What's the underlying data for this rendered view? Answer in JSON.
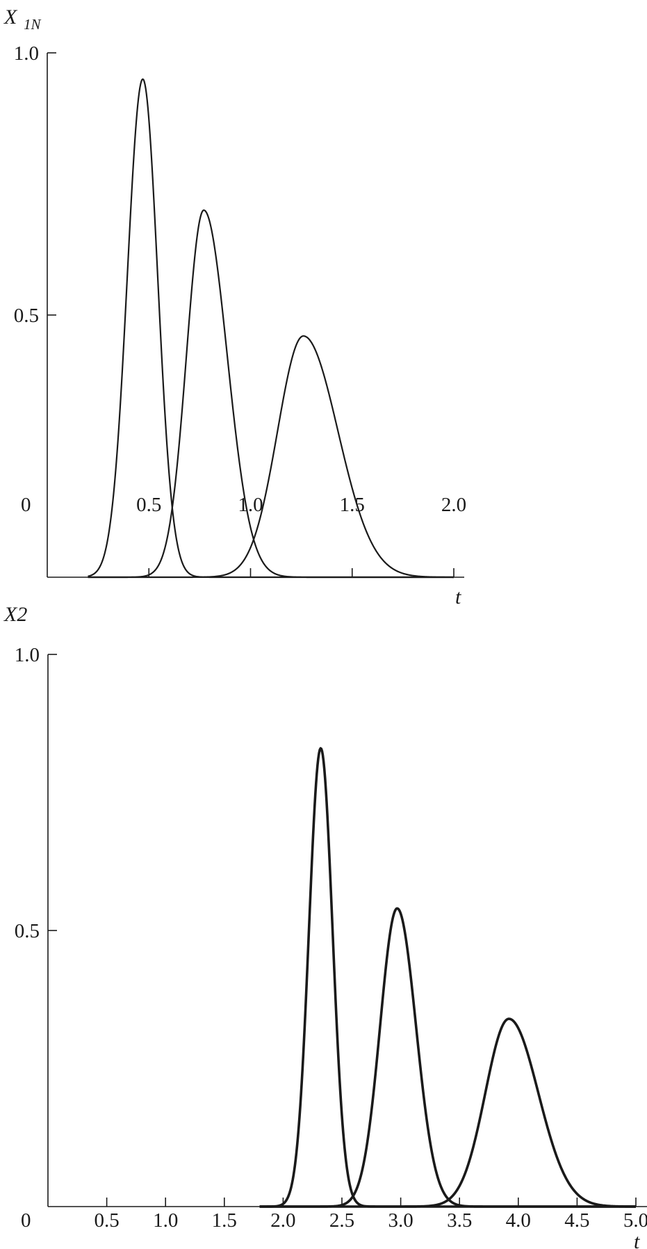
{
  "chart_data": [
    {
      "type": "line",
      "ylabel": "X",
      "ylabel_sub": "1N",
      "xlabel": "t",
      "xlim": [
        0,
        2.0
      ],
      "ylim": [
        0,
        1.0
      ],
      "origin_label": "0",
      "xticks": [
        0.5,
        1.0,
        1.5,
        2.0
      ],
      "xtick_labels": [
        "0.5",
        "1.0",
        "1.5",
        "2.0"
      ],
      "yticks": [
        0.5,
        1.0
      ],
      "ytick_labels": [
        "0.5",
        "1.0"
      ],
      "grid": false,
      "line_color": "#1a1a1a",
      "series": [
        {
          "peak_t": 0.47,
          "peak_value": 0.95,
          "spread_left": 0.076,
          "spread_right": 0.073,
          "t_range": [
            0.2,
            2.0
          ]
        },
        {
          "peak_t": 0.77,
          "peak_value": 0.7,
          "spread_left": 0.085,
          "spread_right": 0.115,
          "t_range": [
            0.2,
            2.0
          ]
        },
        {
          "peak_t": 1.26,
          "peak_value": 0.46,
          "spread_left": 0.127,
          "spread_right": 0.17,
          "t_range": [
            0.2,
            2.0
          ]
        }
      ]
    },
    {
      "type": "line",
      "ylabel": "X2",
      "xlabel": "t",
      "xlim": [
        0,
        5.0
      ],
      "ylim": [
        0,
        1.0
      ],
      "origin_label": "0",
      "xticks": [
        0.5,
        1.0,
        1.5,
        2.0,
        2.5,
        3.0,
        3.5,
        4.0,
        4.5,
        5.0
      ],
      "xtick_labels": [
        "0.5",
        "1.0",
        "1.5",
        "2.0",
        "2.5",
        "3.0",
        "3.5",
        "4.0",
        "4.5",
        "5.0"
      ],
      "yticks": [
        0.5,
        1.0
      ],
      "ytick_labels": [
        "0.5",
        "1.0"
      ],
      "grid": false,
      "line_color": "#1a1a1a",
      "series": [
        {
          "peak_t": 2.32,
          "peak_value": 0.83,
          "spread_left": 0.1,
          "spread_right": 0.1,
          "t_range": [
            1.8,
            5.0
          ]
        },
        {
          "peak_t": 2.97,
          "peak_value": 0.54,
          "spread_left": 0.145,
          "spread_right": 0.16,
          "t_range": [
            1.8,
            5.0
          ]
        },
        {
          "peak_t": 3.92,
          "peak_value": 0.34,
          "spread_left": 0.2,
          "spread_right": 0.25,
          "t_range": [
            1.8,
            5.0
          ]
        }
      ]
    }
  ]
}
